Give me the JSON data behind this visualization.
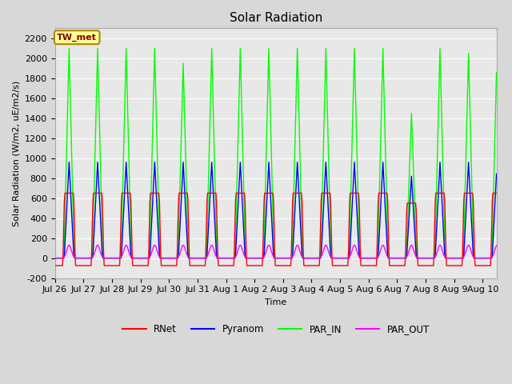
{
  "title": "Solar Radiation",
  "xlabel": "Time",
  "ylabel": "Solar Radiation (W/m2, uE/m2/s)",
  "ylim": [
    -200,
    2300
  ],
  "yticks": [
    -200,
    0,
    200,
    400,
    600,
    800,
    1000,
    1200,
    1400,
    1600,
    1800,
    2000,
    2200
  ],
  "num_days": 15.5,
  "xtick_labels": [
    "Jul 26",
    "Jul 27",
    "Jul 28",
    "Jul 29",
    "Jul 30",
    "Jul 31",
    "Aug 1",
    "Aug 2",
    "Aug 3",
    "Aug 4",
    "Aug 5",
    "Aug 6",
    "Aug 7",
    "Aug 8",
    "Aug 9",
    "Aug 10"
  ],
  "fig_bg_color": "#d8d8d8",
  "plot_bg_color": "#e8e8e8",
  "line_colors": {
    "RNet": "#ff0000",
    "Pyranom": "#0000ff",
    "PAR_IN": "#00ff00",
    "PAR_OUT": "#ff00ff"
  },
  "legend_label": "TW_met",
  "legend_bg": "#ffff99",
  "legend_border": "#aa8800",
  "grid_color": "#ffffff",
  "line_width": 1.0,
  "title_fontsize": 11,
  "label_fontsize": 8,
  "tick_fontsize": 8
}
